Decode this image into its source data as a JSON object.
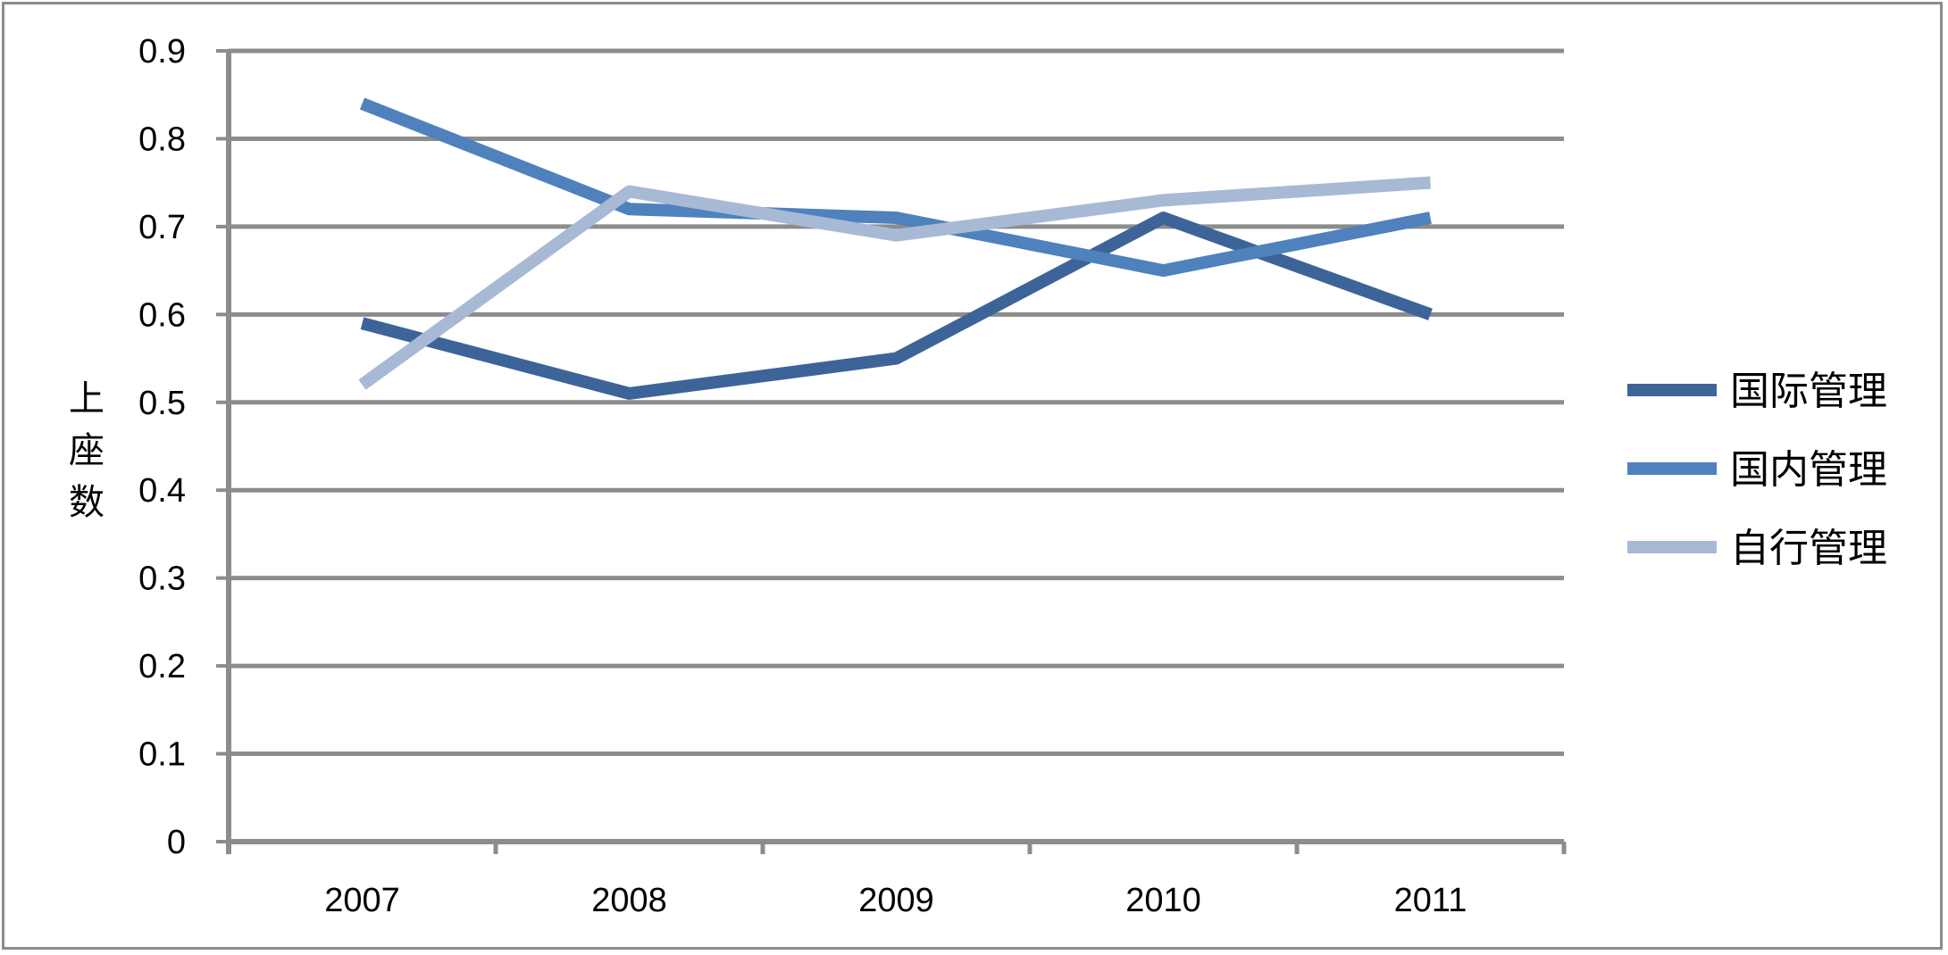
{
  "chart_data": {
    "type": "line",
    "title": "",
    "xlabel": "",
    "ylabel": "上座数",
    "categories": [
      "2007",
      "2008",
      "2009",
      "2010",
      "2011"
    ],
    "ylim": [
      0,
      0.9
    ],
    "yticks": [
      "0",
      "0.1",
      "0.2",
      "0.3",
      "0.4",
      "0.5",
      "0.6",
      "0.7",
      "0.8",
      "0.9"
    ],
    "grid": true,
    "legend": "right",
    "series": [
      {
        "name": "国际管理",
        "color": "#3d6499",
        "values": [
          0.59,
          0.51,
          0.55,
          0.71,
          0.6
        ]
      },
      {
        "name": "国内管理",
        "color": "#4f81bd",
        "values": [
          0.84,
          0.72,
          0.71,
          0.65,
          0.71
        ]
      },
      {
        "name": "自行管理",
        "color": "#a8b9d6",
        "values": [
          0.52,
          0.74,
          0.69,
          0.73,
          0.75
        ]
      }
    ]
  }
}
